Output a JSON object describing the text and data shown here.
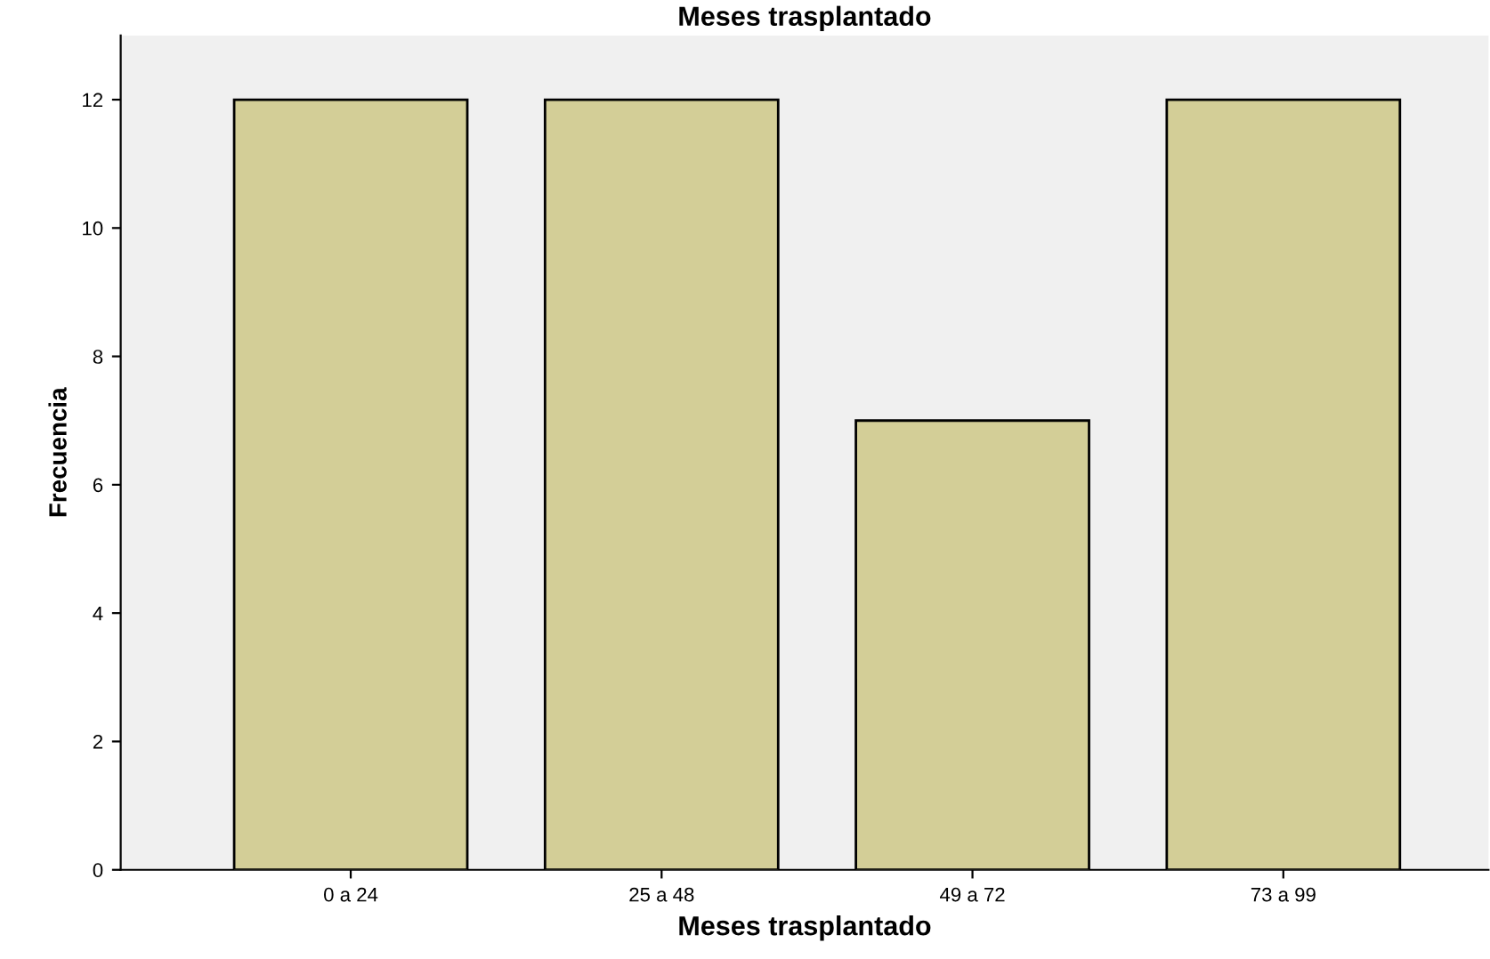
{
  "chart_data": {
    "type": "bar",
    "title": "Meses trasplantado",
    "xlabel": "Meses trasplantado",
    "ylabel": "Frecuencia",
    "categories": [
      "0 a 24",
      "25 a 48",
      "49 a 72",
      "73 a 99"
    ],
    "values": [
      12,
      12,
      7,
      12
    ],
    "color": "#d3ce97",
    "ylim": [
      0,
      13
    ],
    "yticks": [
      0,
      2,
      4,
      6,
      8,
      10,
      12
    ],
    "grid": false
  }
}
